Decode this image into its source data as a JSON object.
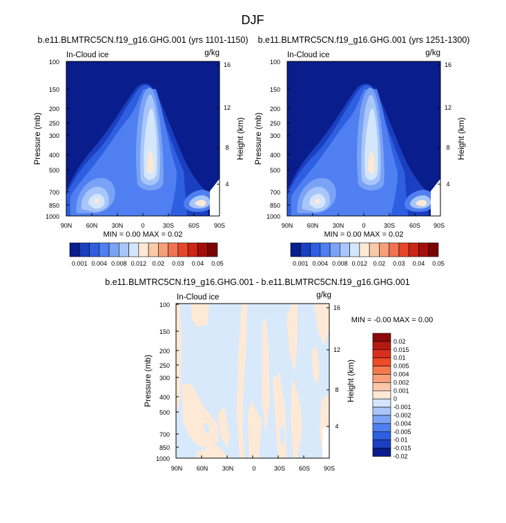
{
  "page_title": "DJF",
  "chart_data": [
    {
      "type": "heatmap",
      "title": "b.e11.BLMTRC5CN.f19_g16.GHG.001 (yrs 1101-1150)",
      "left_label": "In-Cloud ice",
      "units": "g/kg",
      "ylabel": "Pressure (mb)",
      "ylabel_right": "Height (km)",
      "xticks": [
        "90N",
        "60N",
        "30N",
        "0",
        "30S",
        "60S",
        "90S"
      ],
      "yticks": [
        "100",
        "150",
        "200",
        "250",
        "300",
        "400",
        "500",
        "700",
        "850",
        "1000"
      ],
      "yticks_right": [
        "16",
        "12",
        "8",
        "4"
      ],
      "minmax": "MIN =  0.00  MAX =  0.02",
      "colorbar_labels": [
        "0.001",
        "0.004",
        "0.008",
        "0.012",
        "0.02",
        "0.03",
        "0.04",
        "0.05"
      ]
    },
    {
      "type": "heatmap",
      "title": "b.e11.BLMTRC5CN.f19_g16.GHG.001 (yrs 1251-1300)",
      "left_label": "In-Cloud ice",
      "units": "g/kg",
      "ylabel": "Pressure (mb)",
      "ylabel_right": "Height (km)",
      "xticks": [
        "90N",
        "60N",
        "30N",
        "0",
        "30S",
        "60S",
        "90S"
      ],
      "yticks": [
        "100",
        "150",
        "200",
        "250",
        "300",
        "400",
        "500",
        "700",
        "850",
        "1000"
      ],
      "yticks_right": [
        "16",
        "12",
        "8",
        "4"
      ],
      "minmax": "MIN =  0.00  MAX =  0.02",
      "colorbar_labels": [
        "0.001",
        "0.004",
        "0.008",
        "0.012",
        "0.02",
        "0.03",
        "0.04",
        "0.05"
      ]
    },
    {
      "type": "heatmap",
      "title": "b.e11.BLMTRC5CN.f19_g16.GHG.001 - b.e11.BLMTRC5CN.f19_g16.GHG.001",
      "left_label": "In-Cloud ice",
      "units": "g/kg",
      "ylabel": "Pressure (mb)",
      "ylabel_right": "Height (km)",
      "xticks": [
        "90N",
        "60N",
        "30N",
        "0",
        "30S",
        "60S",
        "90S"
      ],
      "yticks": [
        "100",
        "150",
        "200",
        "250",
        "300",
        "400",
        "500",
        "700",
        "850",
        "1000"
      ],
      "yticks_right": [
        "16",
        "12",
        "8",
        "4"
      ],
      "minmax": "MIN = -0.00  MAX =  0.00",
      "colorbar_labels": [
        "0.02",
        "0.015",
        "0.01",
        "0.005",
        "0.004",
        "0.002",
        "0.001",
        "0",
        "-0.001",
        "-0.002",
        "-0.004",
        "-0.005",
        "-0.01",
        "-0.015",
        "-0.02"
      ]
    }
  ],
  "colors": {
    "abs_scale": [
      "#0a1d8c",
      "#1a3fc0",
      "#2e5fe0",
      "#4f7ff0",
      "#7aa3f5",
      "#a8c6fa",
      "#d4e6fb",
      "#fde9d6",
      "#f9c9a8",
      "#f5a07a",
      "#ef7450",
      "#e6472a",
      "#cc2616",
      "#a50f0a",
      "#7a0505"
    ],
    "diff_scale": [
      "#8a0a0a",
      "#b51a12",
      "#d6301c",
      "#ee4a26",
      "#f47a4e",
      "#f7a07a",
      "#f9c7a8",
      "#fde9d6",
      "#d4e6fb",
      "#a8c6fa",
      "#7aa3f5",
      "#4f7ff0",
      "#2e5fe0",
      "#1a3fc0",
      "#0a1d8c"
    ]
  }
}
